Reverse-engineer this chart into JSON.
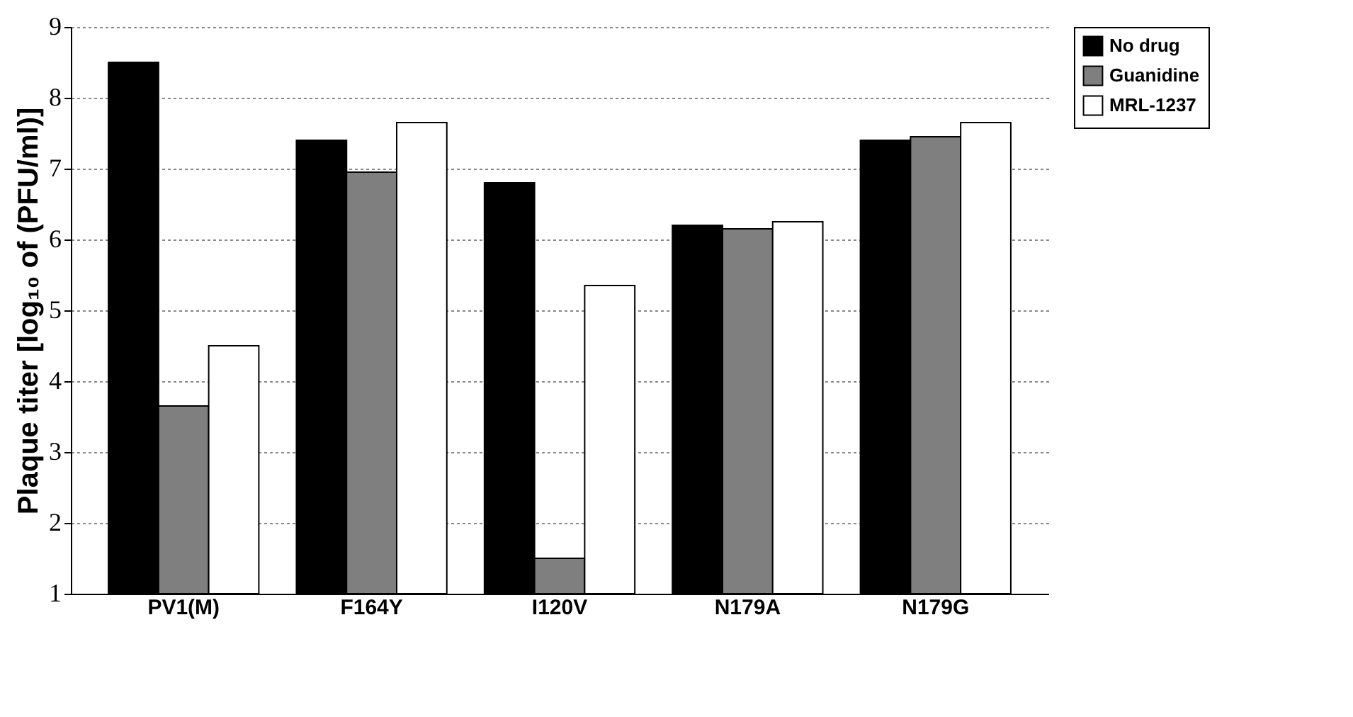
{
  "chart_data": {
    "type": "bar",
    "ylabel": "Plaque titer [log₁₀ of (PFU/ml)]",
    "categories": [
      "PV1(M)",
      "F164Y",
      "I120V",
      "N179A",
      "N179G"
    ],
    "series": [
      {
        "name": "No drug",
        "color": "#000000",
        "values": [
          8.5,
          7.4,
          6.8,
          6.2,
          7.4
        ]
      },
      {
        "name": "Guanidine",
        "color": "#7f7f7f",
        "values": [
          3.65,
          6.95,
          1.5,
          6.15,
          7.45
        ]
      },
      {
        "name": "MRL-1237",
        "color": "#ffffff",
        "values": [
          4.5,
          7.65,
          5.35,
          6.25,
          7.65
        ]
      }
    ],
    "ylim": [
      1,
      9
    ],
    "yticks": [
      1,
      2,
      3,
      4,
      5,
      6,
      7,
      8,
      9
    ],
    "grid": "y",
    "legend": "top right"
  }
}
